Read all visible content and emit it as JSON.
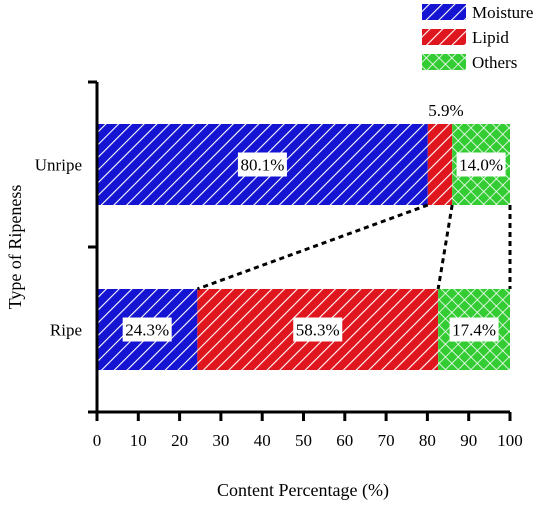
{
  "chart_data": {
    "type": "bar",
    "orientation": "horizontal",
    "stacked": true,
    "title": "",
    "xlabel": "Content Percentage (%)",
    "ylabel": "Type of Ripeness",
    "xlim": [
      0,
      100
    ],
    "x_ticks": [
      0,
      10,
      20,
      30,
      40,
      50,
      60,
      70,
      80,
      90,
      100
    ],
    "categories": [
      "Unripe",
      "Ripe"
    ],
    "series": [
      {
        "name": "Moisture",
        "values": [
          80.1,
          24.3
        ],
        "labels": [
          "80.1%",
          "24.3%"
        ],
        "color": "#1414d2",
        "pattern": "diagonal-hatch"
      },
      {
        "name": "Lipid",
        "values": [
          5.9,
          58.3
        ],
        "labels": [
          "5.9%",
          "58.3%"
        ],
        "color": "#e0161f",
        "pattern": "diagonal-hatch"
      },
      {
        "name": "Others",
        "values": [
          14.0,
          17.4
        ],
        "labels": [
          "14.0%",
          "17.4%"
        ],
        "color": "#33cc33",
        "pattern": "cross-hatch"
      }
    ],
    "connectors": "dashed lines linking the Lipid segment boundaries of Unripe and Ripe bars",
    "legend_position": "top-right",
    "grid": false
  }
}
